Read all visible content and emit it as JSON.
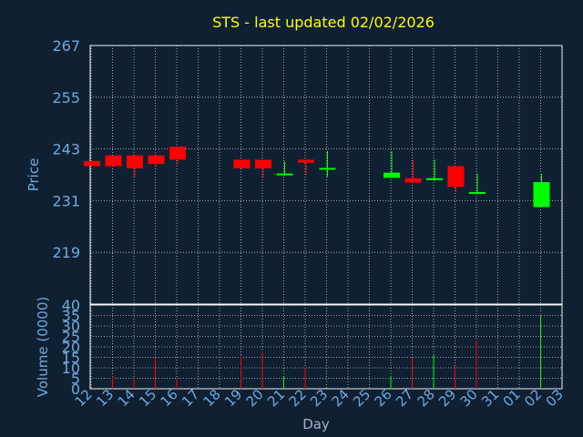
{
  "chart_data": [
    {
      "type": "candlestick",
      "title": "STS - last updated 02/02/2026",
      "ylabel": "Price",
      "ylim": [
        207,
        267
      ],
      "yticks": [
        "267",
        "255",
        "243",
        "231",
        "219"
      ],
      "grid": true,
      "colors": {
        "up": "#00ff00",
        "down": "#ff0000",
        "grid": "#c8c8c8",
        "axis": "#6fa8dc",
        "title": "#ffff00",
        "background": "#102033"
      },
      "candles": [
        {
          "day": "12",
          "open": 240.2,
          "high": 240.2,
          "low": 239.0,
          "close": 239.0
        },
        {
          "day": "13",
          "open": 241.5,
          "high": 241.5,
          "low": 239.0,
          "close": 239.0
        },
        {
          "day": "14",
          "open": 241.5,
          "high": 241.5,
          "low": 236.5,
          "close": 238.5
        },
        {
          "day": "15",
          "open": 241.5,
          "high": 241.5,
          "low": 239.0,
          "close": 239.5
        },
        {
          "day": "16",
          "open": 243.5,
          "high": 243.5,
          "low": 239.5,
          "close": 240.5
        },
        {
          "day": "19",
          "open": 240.5,
          "high": 240.5,
          "low": 238.5,
          "close": 238.5
        },
        {
          "day": "20",
          "open": 240.5,
          "high": 240.5,
          "low": 236.5,
          "close": 238.5
        },
        {
          "day": "21",
          "open": 237.0,
          "high": 240.2,
          "low": 236.8,
          "close": 237.3
        },
        {
          "day": "22",
          "open": 240.5,
          "high": 240.5,
          "low": 237.0,
          "close": 239.8
        },
        {
          "day": "23",
          "open": 238.3,
          "high": 242.5,
          "low": 236.5,
          "close": 238.6
        },
        {
          "day": "26",
          "open": 236.3,
          "high": 242.5,
          "low": 236.3,
          "close": 237.5
        },
        {
          "day": "27",
          "open": 236.2,
          "high": 240.5,
          "low": 235.2,
          "close": 235.2
        },
        {
          "day": "28",
          "open": 236.0,
          "high": 240.5,
          "low": 235.5,
          "close": 236.2
        },
        {
          "day": "29",
          "open": 239.0,
          "high": 239.0,
          "low": 233.0,
          "close": 234.2
        },
        {
          "day": "30",
          "open": 232.8,
          "high": 237.2,
          "low": 232.5,
          "close": 233.0
        },
        {
          "day": "02",
          "open": 229.5,
          "high": 237.2,
          "low": 229.5,
          "close": 235.3
        }
      ]
    },
    {
      "type": "bar",
      "ylabel": "Volume (0000)",
      "ylim": [
        0,
        40
      ],
      "yticks": [
        "40",
        "35",
        "30",
        "25",
        "20",
        "15",
        "10",
        "5",
        "0"
      ],
      "xlabel": "Day",
      "categories": [
        "12",
        "13",
        "14",
        "15",
        "16",
        "17",
        "18",
        "19",
        "20",
        "21",
        "22",
        "23",
        "24",
        "25",
        "26",
        "27",
        "28",
        "29",
        "30",
        "31",
        "01",
        "02",
        "03"
      ],
      "values": [
        0,
        6,
        5,
        15,
        5,
        0,
        0,
        16,
        18,
        6,
        10,
        0.5,
        0,
        0,
        6,
        15,
        16,
        11,
        23,
        0,
        0,
        35,
        0
      ],
      "bar_colors": [
        "red",
        "red",
        "red",
        "red",
        "red",
        "red",
        "red",
        "red",
        "red",
        "green",
        "red",
        "green",
        "red",
        "red",
        "green",
        "red",
        "green",
        "red",
        "red",
        "red",
        "red",
        "green",
        "red"
      ]
    }
  ]
}
